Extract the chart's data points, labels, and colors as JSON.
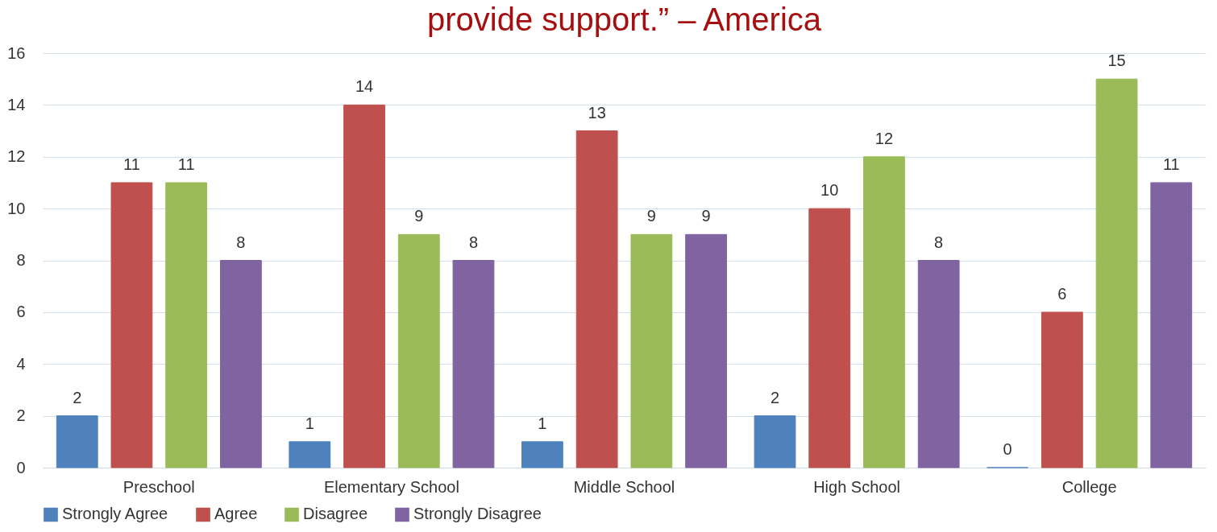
{
  "chart_data": {
    "type": "bar",
    "title": "provide support.” – America",
    "categories": [
      "Preschool",
      "Elementary School",
      "Middle School",
      "High School",
      "College"
    ],
    "series": [
      {
        "name": "Strongly Agree",
        "color": "#4f81bd",
        "values": [
          2,
          1,
          1,
          2,
          0
        ]
      },
      {
        "name": "Agree",
        "color": "#c0504d",
        "values": [
          11,
          14,
          13,
          10,
          6
        ]
      },
      {
        "name": "Disagree",
        "color": "#9bbb59",
        "values": [
          11,
          9,
          9,
          12,
          15
        ]
      },
      {
        "name": "Strongly Disagree",
        "color": "#8064a2",
        "values": [
          8,
          8,
          9,
          8,
          11
        ]
      }
    ],
    "ylim": [
      0,
      16
    ],
    "yticks": [
      0,
      2,
      4,
      6,
      8,
      10,
      12,
      14,
      16
    ],
    "grid": "y",
    "legend": "bottom",
    "data_labels": true
  }
}
